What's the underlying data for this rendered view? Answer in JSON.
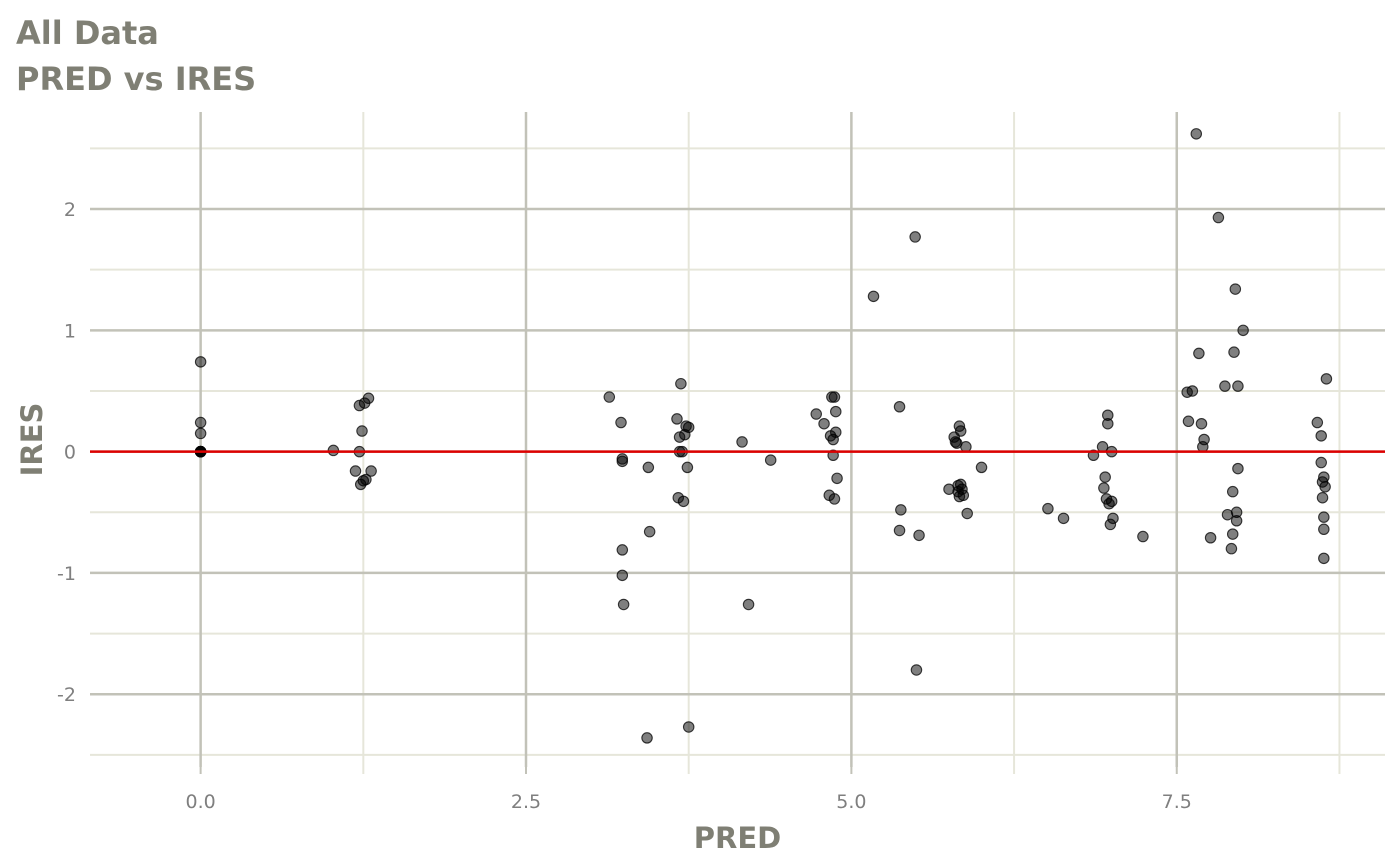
{
  "header": {
    "title_line1": "All Data",
    "title_line2": "PRED vs IRES"
  },
  "colors": {
    "grid_major": "#c2c2b8",
    "grid_minor": "#e6e6da",
    "point": "#000000",
    "reference_line": "#dd0000",
    "text": "#7f7f74"
  },
  "chart_data": {
    "type": "scatter",
    "title": "All Data",
    "subtitle": "PRED vs IRES",
    "xlabel": "PRED",
    "ylabel": "IRES",
    "xlim": [
      -0.85,
      9.1
    ],
    "ylim": [
      -2.6,
      2.8
    ],
    "x_ticks": [
      0.0,
      2.5,
      5.0,
      7.5
    ],
    "x_tick_labels": [
      "0.0",
      "2.5",
      "5.0",
      "7.5"
    ],
    "x_minor_ticks": [
      1.25,
      3.75,
      6.25,
      8.75
    ],
    "y_ticks": [
      -2,
      -1,
      0,
      1,
      2
    ],
    "y_tick_labels": [
      "-2",
      "-1",
      "0",
      "1",
      "2"
    ],
    "y_minor_ticks": [
      -2.5,
      -1.5,
      -0.5,
      0.5,
      1.5,
      2.5
    ],
    "grid": true,
    "reference_line": {
      "y": 0,
      "color": "#dd0000"
    },
    "point_alpha": 0.5,
    "points": [
      [
        0,
        0.74
      ],
      [
        0,
        0.24
      ],
      [
        0,
        0.15
      ],
      [
        0,
        0
      ],
      [
        0,
        0
      ],
      [
        0,
        0
      ],
      [
        0,
        0
      ],
      [
        0,
        0
      ],
      [
        0,
        0
      ],
      [
        1.02,
        0.01
      ],
      [
        1.19,
        -0.16
      ],
      [
        1.22,
        0.38
      ],
      [
        1.22,
        0
      ],
      [
        1.23,
        -0.27
      ],
      [
        1.24,
        0.17
      ],
      [
        1.25,
        -0.24
      ],
      [
        1.26,
        0.4
      ],
      [
        1.27,
        -0.23
      ],
      [
        1.29,
        0.44
      ],
      [
        1.31,
        -0.16
      ],
      [
        3.14,
        0.45
      ],
      [
        3.23,
        0.24
      ],
      [
        3.24,
        -0.06
      ],
      [
        3.24,
        -0.08
      ],
      [
        3.24,
        -0.81
      ],
      [
        3.24,
        -1.02
      ],
      [
        3.25,
        -1.26
      ],
      [
        3.43,
        -2.36
      ],
      [
        3.44,
        -0.13
      ],
      [
        3.45,
        -0.66
      ],
      [
        3.66,
        0.27
      ],
      [
        3.67,
        -0.38
      ],
      [
        3.68,
        0.12
      ],
      [
        3.68,
        0
      ],
      [
        3.69,
        0.56
      ],
      [
        3.7,
        0
      ],
      [
        3.71,
        -0.41
      ],
      [
        3.72,
        0.14
      ],
      [
        3.73,
        0.21
      ],
      [
        3.74,
        -0.13
      ],
      [
        3.75,
        0.2
      ],
      [
        3.75,
        -2.27
      ],
      [
        4.16,
        0.08
      ],
      [
        4.21,
        -1.26
      ],
      [
        4.38,
        -0.07
      ],
      [
        4.73,
        0.31
      ],
      [
        4.79,
        0.23
      ],
      [
        4.83,
        -0.36
      ],
      [
        4.84,
        0.13
      ],
      [
        4.85,
        0.45
      ],
      [
        4.86,
        0.1
      ],
      [
        4.86,
        -0.03
      ],
      [
        4.87,
        0.45
      ],
      [
        4.87,
        -0.39
      ],
      [
        4.88,
        0.16
      ],
      [
        4.88,
        0.33
      ],
      [
        4.89,
        -0.22
      ],
      [
        5.17,
        1.28
      ],
      [
        5.37,
        0.37
      ],
      [
        5.37,
        -0.65
      ],
      [
        5.38,
        -0.48
      ],
      [
        5.49,
        1.77
      ],
      [
        5.5,
        -1.8
      ],
      [
        5.52,
        -0.69
      ],
      [
        5.75,
        -0.31
      ],
      [
        5.79,
        0.12
      ],
      [
        5.8,
        0.08
      ],
      [
        5.81,
        0.07
      ],
      [
        5.82,
        -0.33
      ],
      [
        5.82,
        -0.28
      ],
      [
        5.83,
        -0.37
      ],
      [
        5.83,
        0.21
      ],
      [
        5.84,
        -0.27
      ],
      [
        5.84,
        0.17
      ],
      [
        5.85,
        -0.31
      ],
      [
        5.86,
        -0.36
      ],
      [
        5.88,
        0.04
      ],
      [
        5.89,
        -0.51
      ],
      [
        6.0,
        -0.13
      ],
      [
        6.51,
        -0.47
      ],
      [
        6.63,
        -0.55
      ],
      [
        6.86,
        -0.03
      ],
      [
        6.93,
        0.04
      ],
      [
        6.94,
        -0.3
      ],
      [
        6.95,
        -0.21
      ],
      [
        6.96,
        -0.39
      ],
      [
        6.97,
        0.3
      ],
      [
        6.97,
        0.23
      ],
      [
        6.98,
        -0.43
      ],
      [
        6.99,
        -0.6
      ],
      [
        7.0,
        0
      ],
      [
        7.0,
        -0.41
      ],
      [
        7.01,
        -0.55
      ],
      [
        7.24,
        -0.7
      ],
      [
        7.58,
        0.49
      ],
      [
        7.59,
        0.25
      ],
      [
        7.62,
        0.5
      ],
      [
        7.65,
        2.62
      ],
      [
        7.67,
        0.81
      ],
      [
        7.69,
        0.23
      ],
      [
        7.7,
        0.04
      ],
      [
        7.71,
        0.1
      ],
      [
        7.76,
        -0.71
      ],
      [
        7.82,
        1.93
      ],
      [
        7.87,
        0.54
      ],
      [
        7.89,
        -0.52
      ],
      [
        7.92,
        -0.8
      ],
      [
        7.93,
        -0.33
      ],
      [
        7.93,
        -0.68
      ],
      [
        7.94,
        0.82
      ],
      [
        7.95,
        1.34
      ],
      [
        7.96,
        -0.5
      ],
      [
        7.96,
        -0.57
      ],
      [
        7.97,
        0.54
      ],
      [
        7.97,
        -0.14
      ],
      [
        8.01,
        1.0
      ],
      [
        8.58,
        0.24
      ],
      [
        8.61,
        0.13
      ],
      [
        8.61,
        -0.09
      ],
      [
        8.62,
        -0.38
      ],
      [
        8.62,
        -0.25
      ],
      [
        8.63,
        -0.21
      ],
      [
        8.63,
        -0.54
      ],
      [
        8.63,
        -0.64
      ],
      [
        8.63,
        -0.88
      ],
      [
        8.64,
        -0.29
      ],
      [
        8.65,
        0.6
      ]
    ]
  }
}
